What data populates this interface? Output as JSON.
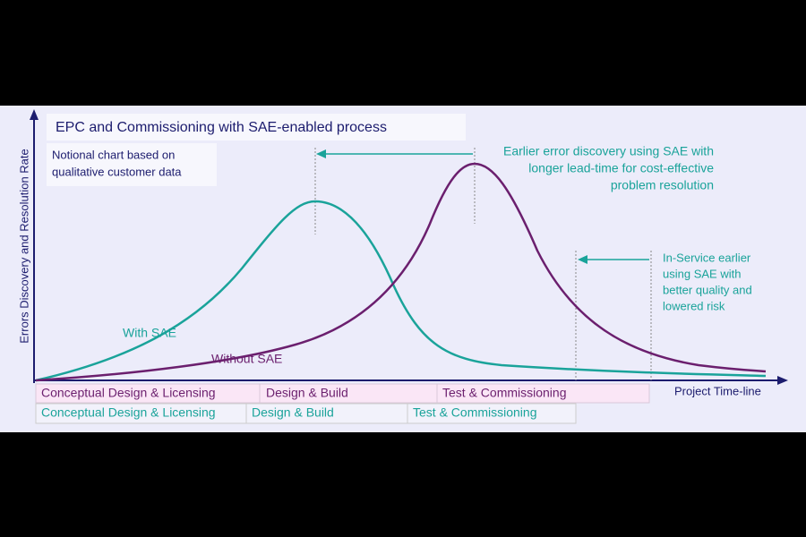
{
  "title": "EPC and Commissioning with SAE-enabled process",
  "subtitle": [
    "Notional chart based on",
    "qualitative customer data"
  ],
  "y_axis_label": "Errors Discovery and Resolution Rate",
  "x_axis_label": "Project Time-line",
  "curve_labels": {
    "with_sae": "With SAE",
    "without_sae": "Without SAE"
  },
  "annotations": {
    "earlier_discovery": [
      "Earlier error discovery using SAE with",
      "longer lead-time for cost-effective",
      "problem resolution"
    ],
    "in_service": [
      "In-Service earlier",
      "using SAE with",
      "better quality and",
      "lowered risk"
    ]
  },
  "phases": {
    "without_sae": [
      "Conceptual Design & Licensing",
      "Design & Build",
      "Test & Commissioning"
    ],
    "with_sae": [
      "Conceptual Design & Licensing",
      "Design & Build",
      "Test & Commissioning"
    ]
  }
}
